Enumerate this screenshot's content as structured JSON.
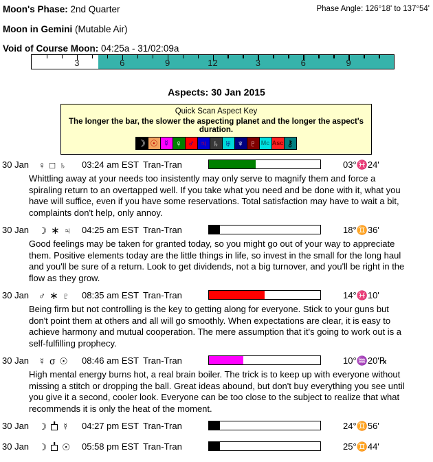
{
  "header": {
    "moons_phase_label": "Moon's Phase:",
    "moons_phase_value": "2nd Quarter",
    "phase_angle_label": "Phase Angle:",
    "phase_angle_value": "126°18' to 137°54'",
    "moon_in_label": "Moon in Gemini",
    "moon_in_quality": "(Mutable Air)",
    "voc_label": "Void of Course Moon:",
    "voc_value": "04:25a - 31/02:09a"
  },
  "voc_timeline": {
    "total_hours": 24,
    "fill_start_hour": 4.42,
    "fill_color": "#36b3ab",
    "labels": [
      {
        "hour": 3,
        "text": "3"
      },
      {
        "hour": 6,
        "text": "6"
      },
      {
        "hour": 9,
        "text": "9"
      },
      {
        "hour": 12,
        "text": "12"
      },
      {
        "hour": 15,
        "text": "3"
      },
      {
        "hour": 18,
        "text": "6"
      },
      {
        "hour": 21,
        "text": "9"
      }
    ]
  },
  "aspects_title": "Aspects: 30 Jan 2015",
  "key_box": {
    "title": "Quick Scan Aspect Key",
    "subtitle": "The longer the bar, the slower the aspecting planet and the longer the aspect's duration.",
    "bg": "#ffffcc",
    "planets": [
      {
        "name": "moon",
        "glyph": "☽",
        "bg": "#000000",
        "fg": "#ffffff"
      },
      {
        "name": "sun",
        "glyph": "☉",
        "bg": "#f2a35e",
        "fg": "#c00000"
      },
      {
        "name": "mercury",
        "glyph": "☿",
        "bg": "#ff00ff",
        "fg": "#000080"
      },
      {
        "name": "venus",
        "glyph": "♀",
        "bg": "#008000",
        "fg": "#ffffff"
      },
      {
        "name": "mars",
        "glyph": "♂",
        "bg": "#ff0000",
        "fg": "#0000c0"
      },
      {
        "name": "jupiter",
        "glyph": "♃",
        "bg": "#0000d0",
        "fg": "#ff0000"
      },
      {
        "name": "saturn",
        "glyph": "♄",
        "bg": "#383838",
        "fg": "#ffffff"
      },
      {
        "name": "uranus",
        "glyph": "♅",
        "bg": "#00d8d8",
        "fg": "#000080"
      },
      {
        "name": "neptune",
        "glyph": "♆",
        "bg": "#000080",
        "fg": "#ffffff"
      },
      {
        "name": "pluto",
        "glyph": "♇",
        "bg": "#800000",
        "fg": "#ffd0d0"
      },
      {
        "name": "mc",
        "glyph": "Mc",
        "bg": "#00e0e0",
        "fg": "#008080",
        "text_style": true
      },
      {
        "name": "asc",
        "glyph": "Asc",
        "bg": "#ff2020",
        "fg": "#800000",
        "text_style": true
      },
      {
        "name": "chiron",
        "glyph": "⚷",
        "bg": "#008080",
        "fg": "#000000"
      }
    ]
  },
  "aspects": [
    {
      "date": "30 Jan",
      "p1_name": "venus",
      "p1": "♀",
      "aspect_name": "square",
      "aspect": "□",
      "p2_name": "saturn",
      "p2": "♄",
      "time": "03:24 am EST",
      "type": "Tran-Tran",
      "bar_pct": 42,
      "bar_color": "#008000",
      "degree": "03°♓24'",
      "text": "Whittling away at your needs too insistently may only serve to magnify them and force a spiraling return to an overtapped well. If you take what you need and be done with it, what you have will suffice, even if you have some reservations. Total satisfaction may have to wait a bit, complaints don't help, only annoy."
    },
    {
      "date": "30 Jan",
      "p1_name": "moon",
      "p1": "☽",
      "aspect_name": "sextile",
      "aspect": "∗",
      "p2_name": "jupiter",
      "p2": "♃",
      "time": "04:25 am EST",
      "type": "Tran-Tran",
      "bar_pct": 10,
      "bar_color": "#000000",
      "degree": "18°♊36'",
      "text": "Good feelings may be taken for granted today, so you might go out of your way to appreciate them. Positive elements today are the little things in life, so invest in the small for the long haul and you'll be sure of a return. Look to get dividends, not a big turnover, and you'll be right in the flow as they grow."
    },
    {
      "date": "30 Jan",
      "p1_name": "mars",
      "p1": "♂",
      "aspect_name": "sextile",
      "aspect": "∗",
      "p2_name": "pluto",
      "p2": "♇",
      "time": "08:35 am EST",
      "type": "Tran-Tran",
      "bar_pct": 50,
      "bar_color": "#ff0000",
      "degree": "14°♓10'",
      "text": "Being firm but not controlling is the key to getting along for everyone. Stick to your guns but don't point them at others and all will go smoothly. When expectations are clear, it is easy to achieve harmony and mutual cooperation. The mere assumption that it's going to work out is a self-fulfilling prophecy."
    },
    {
      "date": "30 Jan",
      "p1_name": "mercury",
      "p1": "☿",
      "aspect_name": "conjunction",
      "aspect": "σ",
      "p2_name": "sun",
      "p2": "☉",
      "time": "08:46 am EST",
      "type": "Tran-Tran",
      "bar_pct": 31,
      "bar_color": "#ff00ff",
      "degree": "10°♒20'℞",
      "text": "High mental energy burns hot, a real brain boiler. The trick is to keep up with everyone without missing a stitch or dropping the ball. Great ideas abound, but don't buy everything you see until you give it a second, cooler look. Everyone can be too close to the subject to realize that what recommends it is only the heat of the moment."
    },
    {
      "date": "30 Jan",
      "p1_name": "moon",
      "p1": "☽",
      "aspect_name": "sesquiquadrate",
      "aspect": null,
      "p2_name": "mercury",
      "p2": "☿",
      "time": "04:27 pm EST",
      "type": "Tran-Tran",
      "bar_pct": 10,
      "bar_color": "#000000",
      "degree": "24°♊56'",
      "text": null
    },
    {
      "date": "30 Jan",
      "p1_name": "moon",
      "p1": "☽",
      "aspect_name": "sesquiquadrate",
      "aspect": null,
      "p2_name": "sun",
      "p2": "☉",
      "time": "05:58 pm EST",
      "type": "Tran-Tran",
      "bar_pct": 10,
      "bar_color": "#000000",
      "degree": "25°♊44'",
      "text": null
    }
  ]
}
